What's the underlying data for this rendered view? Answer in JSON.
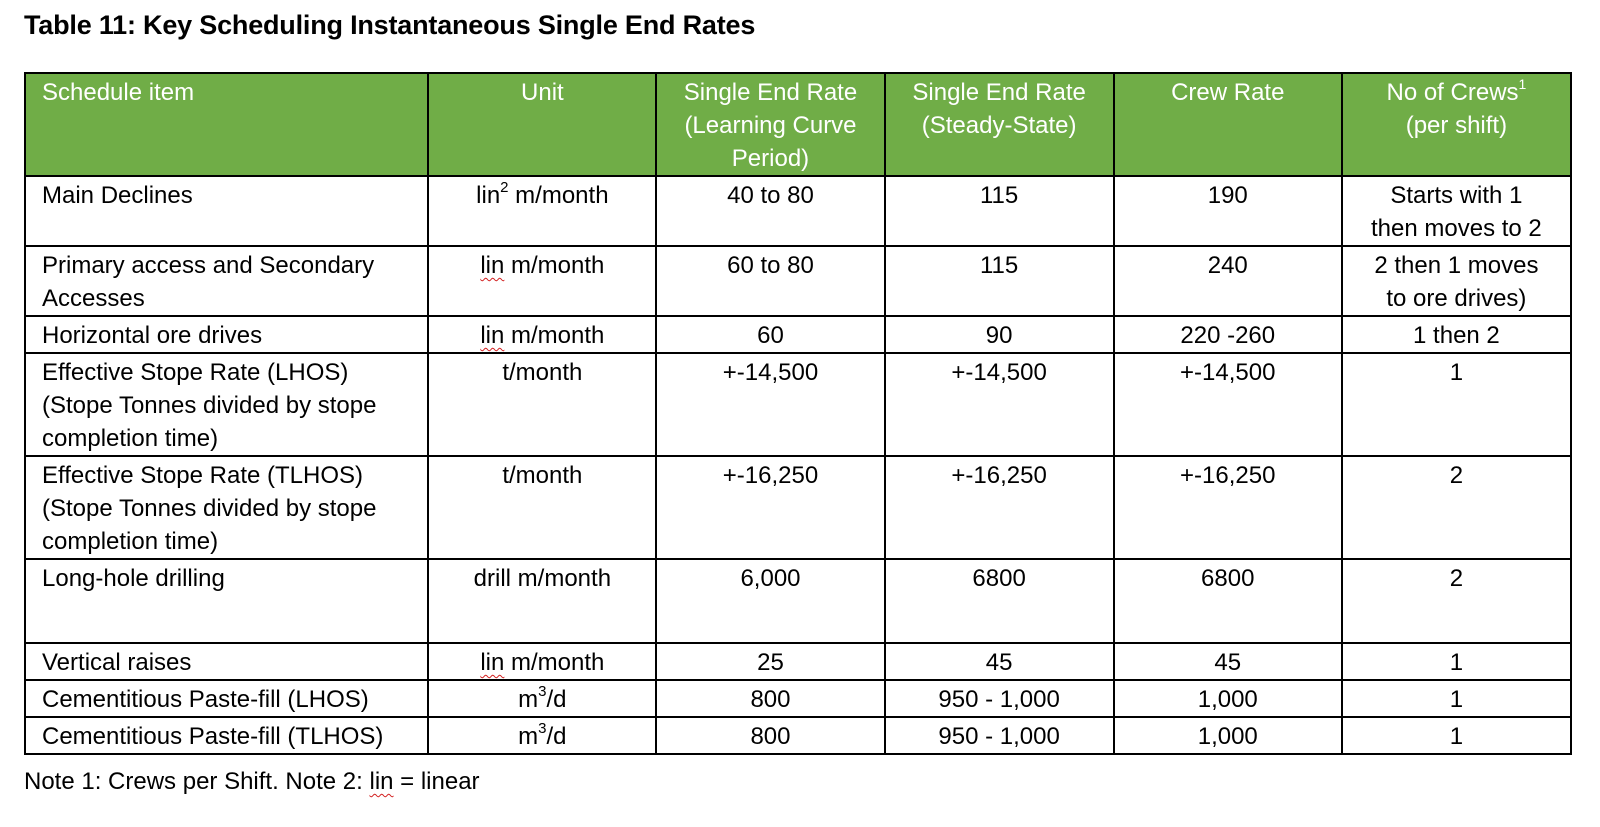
{
  "caption": "Table 11: Key Scheduling Instantaneous Single End Rates",
  "header": {
    "schedule_item": "Schedule item",
    "unit": "Unit",
    "learning_line1": "Single End Rate",
    "learning_line2": "(Learning Curve",
    "learning_line3": "Period)",
    "steady_line1": "Single End Rate",
    "steady_line2": "(Steady-State)",
    "crew_rate": "Crew Rate",
    "crews_line1": "No of Crews",
    "crews_sup": "1",
    "crews_line2": "(per shift)"
  },
  "rows": [
    {
      "item_line1": "Main Declines",
      "unit_prefix": "lin",
      "unit_sup": "2",
      "unit_suffix": " m/month",
      "learning": "40 to 80",
      "steady": "115",
      "crew_rate": "190",
      "crews_line1": "Starts with 1",
      "crews_line2": "then moves to 2"
    },
    {
      "item_line1": "Primary access and Secondary",
      "item_line2": "Accesses",
      "unit_prefix": "lin",
      "unit_suffix": " m/month",
      "learning": "60 to 80",
      "steady": "115",
      "crew_rate": "240",
      "crews_line1": "2 then 1 moves",
      "crews_line2": "to ore drives)"
    },
    {
      "item_line1": "Horizontal ore drives",
      "unit_prefix": "lin",
      "unit_suffix": " m/month",
      "learning": "60",
      "steady": "90",
      "crew_rate": "220 -260",
      "crews_line1": "1 then 2"
    },
    {
      "item_line1": "Effective Stope Rate (LHOS)",
      "item_line2": "(Stope Tonnes divided by stope",
      "item_line3": "completion time)",
      "unit_suffix": "t/month",
      "learning": "+-14,500",
      "steady": "+-14,500",
      "crew_rate": "+-14,500",
      "crews_line1": "1"
    },
    {
      "item_line1": "Effective Stope Rate (TLHOS)",
      "item_line2": "(Stope Tonnes divided by stope",
      "item_line3": "completion time)",
      "unit_suffix": "t/month",
      "learning": "+-16,250",
      "steady": "+-16,250",
      "crew_rate": "+-16,250",
      "crews_line1": "2"
    },
    {
      "item_line1": "Long-hole drilling",
      "unit_suffix": "drill m/month",
      "learning": "6,000",
      "steady": "6800",
      "crew_rate": "6800",
      "crews_line1": "2"
    },
    {
      "item_line1": "Vertical raises",
      "unit_prefix": "lin",
      "unit_suffix": " m/month",
      "learning": "25",
      "steady": "45",
      "crew_rate": "45",
      "crews_line1": "1"
    },
    {
      "item_line1": "Cementitious Paste-fill (LHOS)",
      "unit_prefix": "m",
      "unit_sup": "3",
      "unit_suffix": "/d",
      "learning": "800",
      "steady": "950 - 1,000",
      "crew_rate": "1,000",
      "crews_line1": "1"
    },
    {
      "item_line1": "Cementitious Paste-fill (TLHOS)",
      "unit_prefix": "m",
      "unit_sup": "3",
      "unit_suffix": "/d",
      "learning": "800",
      "steady": "950 - 1,000",
      "crew_rate": "1,000",
      "crews_line1": "1"
    }
  ],
  "note": {
    "prefix": "Note 1: Crews per Shift. Note 2: ",
    "word": "lin",
    "suffix": " = linear"
  },
  "colors": {
    "header_background": "#70ad47",
    "header_text": "#ffffff",
    "spellcheck_underline": "#d21f1f"
  }
}
